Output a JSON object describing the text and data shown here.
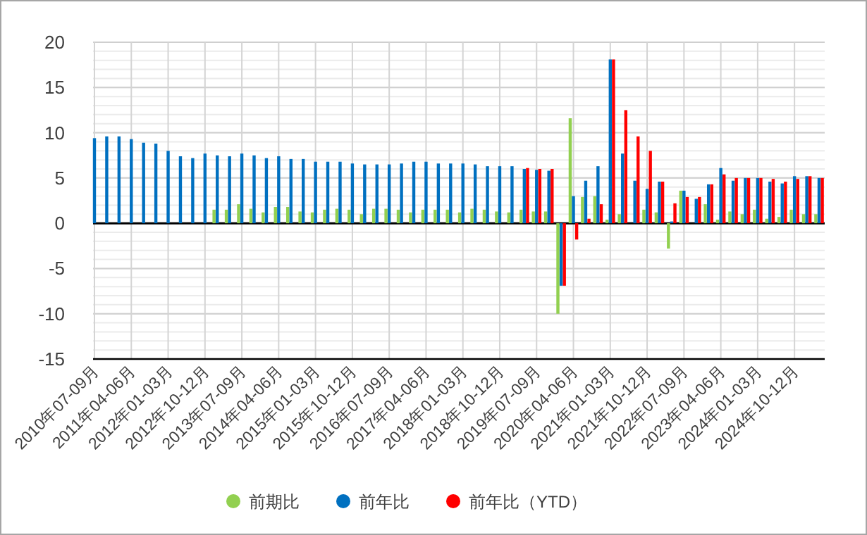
{
  "chart_data": {
    "type": "bar",
    "categories": [
      "2010年07-09月",
      null,
      null,
      "2011年04-06月",
      null,
      null,
      "2012年01-03月",
      null,
      null,
      "2012年10-12月",
      null,
      null,
      "2013年07-09月",
      null,
      null,
      "2014年04-06月",
      null,
      null,
      "2015年01-03月",
      null,
      null,
      "2015年10-12月",
      null,
      null,
      "2016年07-09月",
      null,
      null,
      "2017年04-06月",
      null,
      null,
      "2018年01-03月",
      null,
      null,
      "2018年10-12月",
      null,
      null,
      "2019年07-09月",
      null,
      null,
      "2020年04-06月",
      null,
      null,
      "2021年01-03月",
      null,
      null,
      "2021年10-12月",
      null,
      null,
      "2022年07-09月",
      null,
      null,
      "2023年04-06月",
      null,
      null,
      "2024年01-03月",
      null,
      null,
      "2024年10-12月",
      null,
      null
    ],
    "series": [
      {
        "name": "前期比",
        "color": "#92d050",
        "values": [
          null,
          null,
          null,
          null,
          null,
          null,
          null,
          null,
          null,
          null,
          1.5,
          1.5,
          2.1,
          1.6,
          1.2,
          1.8,
          1.8,
          1.3,
          1.2,
          1.5,
          1.6,
          1.5,
          1.0,
          1.6,
          1.6,
          1.5,
          1.2,
          1.5,
          1.5,
          1.5,
          1.2,
          1.6,
          1.5,
          1.3,
          1.2,
          1.5,
          1.3,
          1.3,
          -10.0,
          11.6,
          2.9,
          3.0,
          0.4,
          1.0,
          0,
          1.5,
          1.2,
          -2.8,
          3.6,
          0,
          2.1,
          0.4,
          1.3,
          1.0,
          1.5,
          0.5,
          0.7,
          1.5,
          1.0,
          1.0
        ]
      },
      {
        "name": "前年比",
        "color": "#0070c0",
        "values": [
          9.4,
          9.6,
          9.6,
          9.3,
          8.9,
          8.8,
          8.0,
          7.4,
          7.2,
          7.7,
          7.5,
          7.4,
          7.7,
          7.5,
          7.2,
          7.4,
          7.1,
          7.1,
          6.8,
          6.8,
          6.8,
          6.6,
          6.5,
          6.5,
          6.5,
          6.6,
          6.8,
          6.8,
          6.6,
          6.6,
          6.6,
          6.5,
          6.3,
          6.3,
          6.3,
          6.0,
          5.9,
          5.8,
          -6.9,
          3.0,
          4.7,
          6.3,
          18.1,
          7.7,
          4.7,
          3.8,
          4.6,
          0.2,
          3.6,
          2.7,
          4.3,
          6.1,
          4.7,
          5.0,
          5.0,
          4.6,
          4.4,
          5.2,
          5.2,
          5.0
        ]
      },
      {
        "name": "前年比（YTD）",
        "color": "#ff0000",
        "values": [
          null,
          null,
          null,
          null,
          null,
          null,
          null,
          null,
          null,
          null,
          null,
          null,
          null,
          null,
          null,
          null,
          null,
          null,
          null,
          null,
          null,
          null,
          null,
          null,
          null,
          null,
          null,
          null,
          null,
          null,
          null,
          null,
          null,
          null,
          null,
          6.1,
          6.0,
          6.0,
          -6.9,
          -1.8,
          0.5,
          2.1,
          18.1,
          12.5,
          9.6,
          8.0,
          4.6,
          2.2,
          2.9,
          2.9,
          4.3,
          5.4,
          5.0,
          5.0,
          5.0,
          4.9,
          4.6,
          4.9,
          5.2,
          5.0
        ]
      }
    ],
    "ylim": [
      -15,
      20
    ],
    "yticks": [
      -15,
      -10,
      -5,
      0,
      5,
      10,
      15,
      20
    ],
    "grid": true,
    "legend": "bottom"
  }
}
